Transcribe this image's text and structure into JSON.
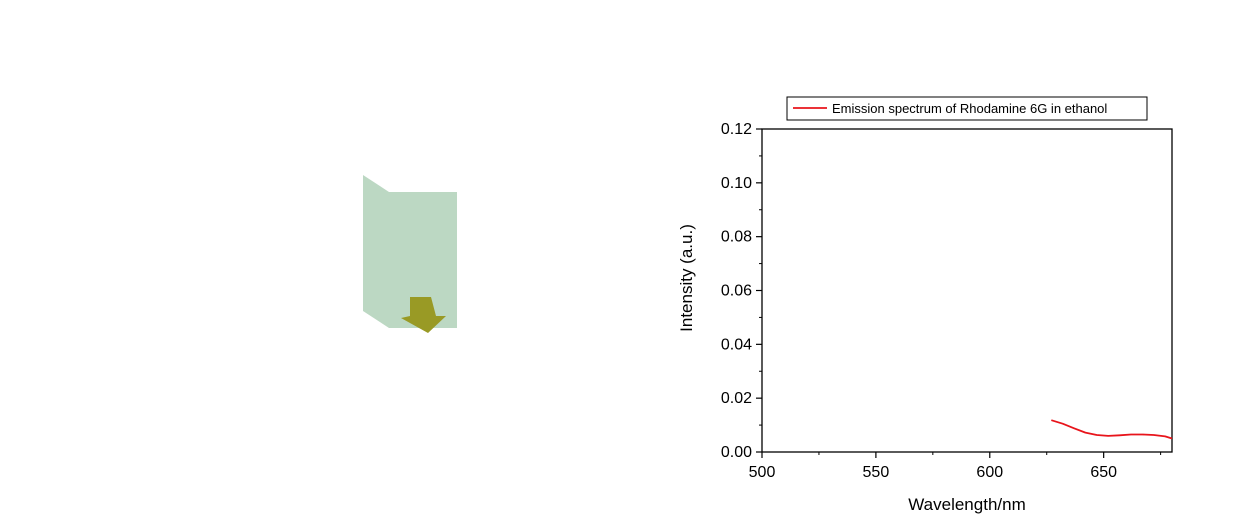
{
  "chart_data": {
    "type": "line",
    "title": "",
    "xlabel": "Wavelength/nm",
    "ylabel": "Intensity (a.u.)",
    "xlim": [
      500,
      680
    ],
    "ylim": [
      0,
      0.12
    ],
    "x_ticks": [
      500,
      550,
      600,
      650
    ],
    "x_tick_labels": [
      "500",
      "550",
      "600",
      "650"
    ],
    "y_ticks": [
      0,
      0.02,
      0.04,
      0.06,
      0.08,
      0.1,
      0.12
    ],
    "y_tick_labels": [
      "0.00",
      "0.02",
      "0.04",
      "0.06",
      "0.08",
      "0.10",
      "0.12"
    ],
    "grid": false,
    "legend_position": "top",
    "series": [
      {
        "name": "Emission spectrum of Rhodamine 6G in ethanol",
        "color": "#e8141b",
        "x": [
          627,
          632,
          637,
          642,
          647,
          652,
          657,
          662,
          667,
          672,
          677,
          680
        ],
        "y": [
          0.0118,
          0.0105,
          0.0088,
          0.0072,
          0.0063,
          0.006,
          0.0062,
          0.0065,
          0.0065,
          0.0063,
          0.0058,
          0.005
        ]
      }
    ]
  },
  "illustration": {
    "panel_color": "#bcd8c3",
    "arrow_color": "#999a25"
  }
}
